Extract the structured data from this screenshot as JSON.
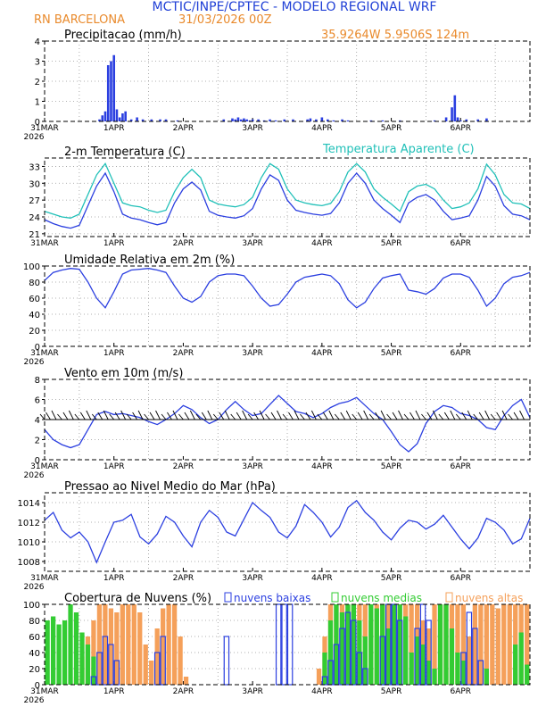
{
  "header": {
    "title": "MCTIC/INPE/CPTEC - MODELO REGIONAL WRF",
    "location": "RN BARCELONA",
    "run": "31/03/2026 00Z",
    "coords": "35.9264W 5.9506S 124m"
  },
  "colors": {
    "blue": "#2b3fe0",
    "cyan": "#20c0b8",
    "orange": "#f5a05a",
    "green": "#33cc33",
    "title_blue": "#1f3fd6",
    "title_orange": "#e98a2c"
  },
  "axis": {
    "day_labels": [
      "31MAR",
      "1APR",
      "2APR",
      "3APR",
      "4APR",
      "5APR",
      "6APR"
    ],
    "year_label": "2026"
  },
  "chart_data": [
    {
      "id": "precip",
      "type": "bar",
      "title": "Precipitacao (mm/h)",
      "ylim": [
        0,
        4
      ],
      "yticks": [
        0,
        1,
        2,
        3,
        4
      ],
      "unit": "mm/h",
      "x_hours": [
        19,
        20,
        21,
        22,
        23,
        24,
        25,
        26,
        27,
        28,
        30,
        32,
        34,
        37,
        40,
        42,
        46,
        62,
        65,
        66,
        67,
        68,
        69,
        70,
        71,
        72,
        74,
        76,
        78,
        80,
        83,
        86,
        91,
        92,
        94,
        96,
        98,
        100,
        103,
        105,
        113,
        117,
        123,
        135,
        139,
        141,
        142,
        143,
        144,
        146,
        150,
        153
      ],
      "values": [
        0.1,
        0.3,
        0.5,
        2.8,
        3.0,
        3.3,
        0.6,
        0.2,
        0.4,
        0.5,
        0.1,
        0.2,
        0.1,
        0.1,
        0.1,
        0.1,
        0.05,
        0.1,
        0.15,
        0.1,
        0.2,
        0.1,
        0.15,
        0.1,
        0.05,
        0.1,
        0.1,
        0.05,
        0.1,
        0.05,
        0.1,
        0.1,
        0.1,
        0.15,
        0.1,
        0.2,
        0.1,
        0.05,
        0.1,
        0.05,
        0.05,
        0.05,
        0.05,
        0.05,
        0.2,
        0.7,
        1.3,
        0.2,
        0.05,
        0.1,
        0.1,
        0.15
      ]
    },
    {
      "id": "temperature",
      "type": "line",
      "title": "2-m Temperatura (C)",
      "legend": "Temperatura Aparente (C)",
      "ylim": [
        20.5,
        34.5
      ],
      "yticks": [
        21,
        24,
        27,
        30,
        33
      ],
      "x_hours": [
        0,
        3,
        6,
        9,
        12,
        15,
        18,
        21,
        24,
        27,
        30,
        33,
        36,
        39,
        42,
        45,
        48,
        51,
        54,
        57,
        60,
        63,
        66,
        69,
        72,
        75,
        78,
        81,
        84,
        87,
        90,
        93,
        96,
        99,
        102,
        105,
        108,
        111,
        114,
        117,
        120,
        123,
        126,
        129,
        132,
        135,
        138,
        141,
        144,
        147,
        150,
        153,
        156,
        159,
        162,
        165,
        168
      ],
      "series": [
        {
          "name": "2-m Temperatura (C)",
          "color": "blue",
          "values": [
            23.5,
            22.8,
            22.3,
            22.0,
            22.5,
            26.0,
            29.5,
            31.8,
            28.5,
            24.5,
            23.8,
            23.5,
            23.0,
            22.6,
            23.0,
            26.5,
            29.0,
            30.2,
            28.8,
            25.0,
            24.3,
            24.0,
            23.8,
            24.2,
            25.5,
            29.0,
            31.5,
            30.5,
            27.0,
            25.2,
            24.8,
            24.5,
            24.3,
            24.6,
            26.5,
            30.0,
            31.8,
            30.0,
            27.0,
            25.5,
            24.3,
            23.0,
            26.5,
            27.5,
            28.0,
            27.0,
            25.0,
            23.5,
            23.8,
            24.2,
            27.0,
            31.2,
            29.5,
            26.0,
            24.5,
            24.2,
            23.5
          ]
        },
        {
          "name": "Temperatura Aparente (C)",
          "color": "cyan",
          "values": [
            25.0,
            24.5,
            24.0,
            23.8,
            24.5,
            28.0,
            31.5,
            33.5,
            30.0,
            26.5,
            26.0,
            25.8,
            25.2,
            24.8,
            25.2,
            28.5,
            31.0,
            32.5,
            31.0,
            27.0,
            26.3,
            26.0,
            25.8,
            26.2,
            27.5,
            31.0,
            33.5,
            32.5,
            29.0,
            27.0,
            26.5,
            26.2,
            26.0,
            26.4,
            28.5,
            32.0,
            33.5,
            32.0,
            29.0,
            27.5,
            26.3,
            25.0,
            28.5,
            29.5,
            29.8,
            29.0,
            27.0,
            25.5,
            25.8,
            26.5,
            29.0,
            33.4,
            31.5,
            28.0,
            26.5,
            26.3,
            25.5
          ]
        }
      ]
    },
    {
      "id": "humidity",
      "type": "line",
      "title": "Umidade Relativa em 2m (%)",
      "ylim": [
        0,
        100
      ],
      "yticks": [
        0,
        20,
        40,
        60,
        80,
        100
      ],
      "x_hours": [
        0,
        3,
        6,
        9,
        12,
        15,
        18,
        21,
        24,
        27,
        30,
        33,
        36,
        39,
        42,
        45,
        48,
        51,
        54,
        57,
        60,
        63,
        66,
        69,
        72,
        75,
        78,
        81,
        84,
        87,
        90,
        93,
        96,
        99,
        102,
        105,
        108,
        111,
        114,
        117,
        120,
        123,
        126,
        129,
        132,
        135,
        138,
        141,
        144,
        147,
        150,
        153,
        156,
        159,
        162,
        165,
        168
      ],
      "series": [
        {
          "name": "Umidade Relativa",
          "color": "blue",
          "values": [
            82,
            92,
            95,
            97,
            96,
            80,
            60,
            48,
            68,
            90,
            95,
            96,
            97,
            95,
            92,
            75,
            60,
            55,
            62,
            80,
            88,
            90,
            90,
            88,
            75,
            60,
            50,
            52,
            65,
            80,
            86,
            88,
            90,
            88,
            78,
            58,
            48,
            55,
            72,
            85,
            88,
            90,
            70,
            68,
            65,
            72,
            85,
            90,
            90,
            86,
            70,
            50,
            60,
            78,
            86,
            88,
            92
          ]
        }
      ]
    },
    {
      "id": "wind",
      "type": "line",
      "title": "Vento em 10m (m/s)",
      "ylim": [
        0,
        8
      ],
      "yticks": [
        0,
        2,
        4,
        6,
        8
      ],
      "x_hours": [
        0,
        3,
        6,
        9,
        12,
        15,
        18,
        21,
        24,
        27,
        30,
        33,
        36,
        39,
        42,
        45,
        48,
        51,
        54,
        57,
        60,
        63,
        66,
        69,
        72,
        75,
        78,
        81,
        84,
        87,
        90,
        93,
        96,
        99,
        102,
        105,
        108,
        111,
        114,
        117,
        120,
        123,
        126,
        129,
        132,
        135,
        138,
        141,
        144,
        147,
        150,
        153,
        156,
        159,
        162,
        165,
        168
      ],
      "series": [
        {
          "name": "Vento 10m",
          "color": "blue",
          "values": [
            3.0,
            2.0,
            1.5,
            1.2,
            1.5,
            3.0,
            4.5,
            4.8,
            4.5,
            4.6,
            4.4,
            4.2,
            3.8,
            3.5,
            4.0,
            4.6,
            5.4,
            5.0,
            4.2,
            3.6,
            4.0,
            5.0,
            5.8,
            5.0,
            4.4,
            4.6,
            5.5,
            6.4,
            5.6,
            4.8,
            4.6,
            4.2,
            4.6,
            5.2,
            5.6,
            5.8,
            6.2,
            5.4,
            4.6,
            4.0,
            2.8,
            1.5,
            0.8,
            1.6,
            3.6,
            4.8,
            5.4,
            5.2,
            4.6,
            4.4,
            4.0,
            3.2,
            3.0,
            4.4,
            5.4,
            6.0,
            4.2
          ]
        }
      ]
    },
    {
      "id": "pressure",
      "type": "line",
      "title": "Pressao ao Nivel Medio do Mar (hPa)",
      "ylim": [
        1007,
        1015
      ],
      "yticks": [
        1008,
        1010,
        1012,
        1014
      ],
      "x_hours": [
        0,
        3,
        6,
        9,
        12,
        15,
        18,
        21,
        24,
        27,
        30,
        33,
        36,
        39,
        42,
        45,
        48,
        51,
        54,
        57,
        60,
        63,
        66,
        69,
        72,
        75,
        78,
        81,
        84,
        87,
        90,
        93,
        96,
        99,
        102,
        105,
        108,
        111,
        114,
        117,
        120,
        123,
        126,
        129,
        132,
        135,
        138,
        141,
        144,
        147,
        150,
        153,
        156,
        159,
        162,
        165,
        168
      ],
      "series": [
        {
          "name": "Pressao",
          "color": "blue",
          "values": [
            1012.2,
            1013.0,
            1011.2,
            1010.4,
            1011.0,
            1010.0,
            1007.9,
            1010.0,
            1012.0,
            1012.2,
            1012.8,
            1010.5,
            1009.8,
            1010.8,
            1012.6,
            1012.0,
            1010.6,
            1009.5,
            1012.0,
            1013.2,
            1012.5,
            1011.0,
            1010.6,
            1012.3,
            1014.0,
            1013.2,
            1012.5,
            1011.0,
            1010.4,
            1011.6,
            1013.8,
            1013.0,
            1012.0,
            1010.5,
            1011.5,
            1013.5,
            1014.2,
            1013.0,
            1012.2,
            1011.0,
            1010.2,
            1011.4,
            1012.2,
            1012.0,
            1011.3,
            1011.8,
            1012.7,
            1011.5,
            1010.3,
            1009.3,
            1010.4,
            1012.4,
            1012.0,
            1011.2,
            1009.8,
            1010.3,
            1012.4
          ]
        }
      ]
    },
    {
      "id": "clouds",
      "type": "bar",
      "title": "Cobertura de Nuvens (%)",
      "legend": [
        "nuvens baixas",
        "nuvens medias",
        "nuvens altas"
      ],
      "ylim": [
        0,
        100
      ],
      "yticks": [
        0,
        20,
        40,
        60,
        80,
        100
      ],
      "x_hours": [
        0,
        2,
        4,
        6,
        8,
        10,
        12,
        14,
        16,
        18,
        20,
        22,
        24,
        26,
        28,
        30,
        32,
        34,
        36,
        38,
        40,
        42,
        44,
        46,
        48,
        50,
        52,
        54,
        56,
        58,
        60,
        62,
        64,
        66,
        68,
        70,
        72,
        74,
        76,
        78,
        80,
        82,
        84,
        86,
        88,
        90,
        92,
        94,
        96,
        98,
        100,
        102,
        104,
        106,
        108,
        110,
        112,
        114,
        116,
        118,
        120,
        122,
        124,
        126,
        128,
        130,
        132,
        134,
        136,
        138,
        140,
        142,
        144,
        146,
        148,
        150,
        152,
        154,
        156,
        158,
        160,
        162,
        164,
        166
      ],
      "series": [
        {
          "name": "nuvens altas",
          "color": "orange",
          "values": [
            0,
            0,
            0,
            0,
            0,
            10,
            35,
            60,
            80,
            100,
            100,
            95,
            90,
            100,
            100,
            100,
            90,
            50,
            30,
            70,
            95,
            100,
            100,
            60,
            10,
            0,
            0,
            0,
            0,
            0,
            0,
            0,
            0,
            0,
            0,
            0,
            0,
            0,
            0,
            0,
            0,
            0,
            0,
            0,
            0,
            0,
            0,
            20,
            60,
            100,
            100,
            100,
            100,
            100,
            100,
            100,
            80,
            100,
            100,
            100,
            95,
            100,
            100,
            100,
            100,
            80,
            70,
            100,
            100,
            100,
            100,
            100,
            100,
            60,
            100,
            100,
            100,
            100,
            95,
            100,
            100,
            100,
            100,
            100
          ]
        },
        {
          "name": "nuvens medias",
          "color": "green",
          "values": [
            80,
            85,
            75,
            80,
            100,
            90,
            65,
            50,
            35,
            0,
            0,
            0,
            0,
            0,
            0,
            0,
            0,
            0,
            0,
            0,
            0,
            0,
            0,
            0,
            0,
            0,
            0,
            0,
            0,
            0,
            0,
            0,
            0,
            0,
            0,
            0,
            0,
            0,
            0,
            0,
            0,
            0,
            0,
            0,
            0,
            0,
            0,
            0,
            40,
            80,
            100,
            90,
            100,
            100,
            80,
            60,
            100,
            95,
            100,
            70,
            100,
            100,
            85,
            40,
            60,
            50,
            30,
            20,
            100,
            100,
            70,
            40,
            30,
            0,
            0,
            0,
            20,
            0,
            0,
            0,
            0,
            50,
            65,
            25
          ]
        },
        {
          "name": "nuvens baixas",
          "color": "blue",
          "values": [
            0,
            0,
            0,
            0,
            0,
            0,
            0,
            0,
            10,
            40,
            60,
            50,
            30,
            0,
            0,
            0,
            0,
            0,
            0,
            40,
            60,
            0,
            0,
            0,
            0,
            0,
            0,
            0,
            0,
            0,
            0,
            60,
            0,
            0,
            0,
            0,
            0,
            0,
            0,
            0,
            100,
            100,
            100,
            0,
            0,
            0,
            0,
            0,
            10,
            30,
            50,
            70,
            90,
            80,
            40,
            20,
            0,
            0,
            60,
            100,
            100,
            80,
            0,
            0,
            70,
            100,
            80,
            0,
            0,
            0,
            0,
            0,
            40,
            90,
            70,
            30,
            0,
            0,
            0,
            0,
            0,
            0,
            0,
            0
          ]
        }
      ]
    }
  ]
}
